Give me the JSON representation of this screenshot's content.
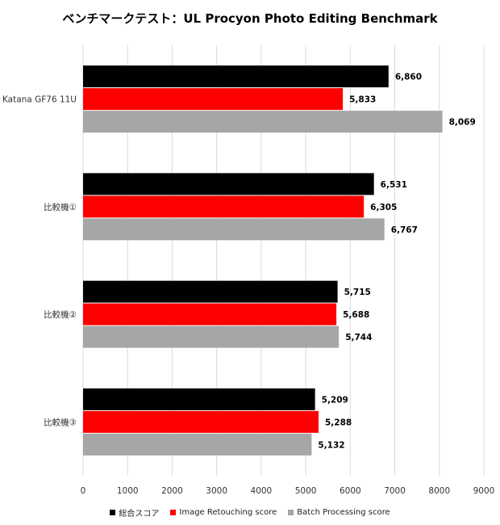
{
  "chart_data": {
    "type": "bar",
    "orientation": "horizontal",
    "title": "ベンチマークテスト：UL Procyon Photo Editing Benchmark",
    "categories": [
      "Katana GF76 11U",
      "比較機①",
      "比較機②",
      "比較機③"
    ],
    "series": [
      {
        "name": "総合スコア",
        "values": [
          6860,
          6531,
          5715,
          5209
        ],
        "color": "#000000"
      },
      {
        "name": "Image Retouching score",
        "values": [
          5833,
          6305,
          5688,
          5288
        ],
        "color": "#ff0000"
      },
      {
        "name": "Batch Processing score",
        "values": [
          8069,
          6767,
          5744,
          5132
        ],
        "color": "#a6a6a6"
      }
    ],
    "data_labels": [
      [
        "6,860",
        "6,531",
        "5,715",
        "5,209"
      ],
      [
        "5,833",
        "6,305",
        "5,688",
        "5,288"
      ],
      [
        "8,069",
        "6,767",
        "5,744",
        "5,132"
      ]
    ],
    "xlim": [
      0,
      9000
    ],
    "x_ticks": [
      "0",
      "1000",
      "2000",
      "3000",
      "4000",
      "5000",
      "6000",
      "7000",
      "8000",
      "9000"
    ],
    "grid": true,
    "legend_position": "bottom"
  }
}
